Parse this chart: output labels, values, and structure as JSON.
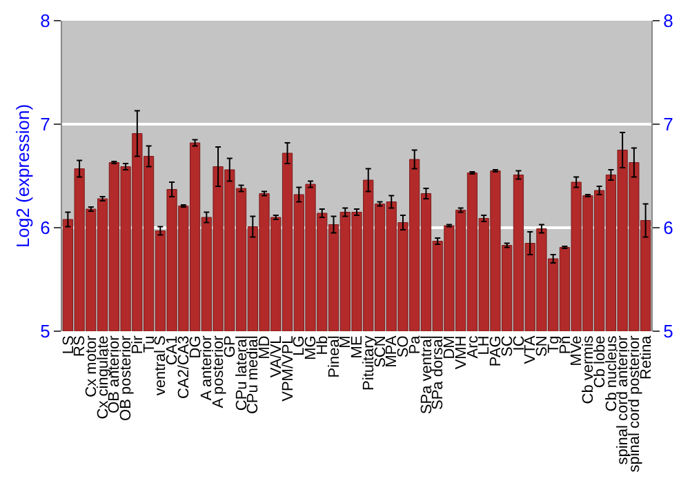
{
  "chart_data": {
    "type": "bar",
    "ylabel": "Log2 (expression)",
    "categories": [
      "LS",
      "RS",
      "Cx motor",
      "Cx cingulate",
      "OB anterior",
      "OB posterior",
      "Pir",
      "Tu",
      "ventral S",
      "CA1",
      "CA2/CA3",
      "DG",
      "A anterior",
      "A posterior",
      "GP",
      "CPu lateral",
      "CPu medial",
      "MD",
      "VA/VL",
      "VPM/VPL",
      "LG",
      "MG",
      "Hb",
      "Pineal",
      "M",
      "ME",
      "Pituitary",
      "SCN",
      "MPA",
      "SO",
      "Pa",
      "SPa ventral",
      "SPa dorsal",
      "DM",
      "VMH",
      "Arc",
      "LH",
      "PAG",
      "SC",
      "IC",
      "VTA",
      "SN",
      "Tg",
      "Pn",
      "MVe",
      "Cb vermis",
      "Cb lobe",
      "Cb nucleus",
      "spinal cord anterior",
      "spinal cord posterior",
      "Retina"
    ],
    "values": [
      6.08,
      6.57,
      6.18,
      6.28,
      6.63,
      6.59,
      6.91,
      6.69,
      5.97,
      6.37,
      6.21,
      6.82,
      6.1,
      6.59,
      6.56,
      6.38,
      6.01,
      6.33,
      6.1,
      6.72,
      6.32,
      6.42,
      6.14,
      6.03,
      6.15,
      6.15,
      6.46,
      6.23,
      6.25,
      6.05,
      6.66,
      6.33,
      5.87,
      6.02,
      6.17,
      6.53,
      6.09,
      6.55,
      5.83,
      6.51,
      5.85,
      5.99,
      5.7,
      5.81,
      6.44,
      6.31,
      6.36,
      6.51,
      6.75,
      6.63,
      6.07
    ],
    "errors": [
      0.07,
      0.08,
      0.02,
      0.02,
      0.01,
      0.03,
      0.22,
      0.1,
      0.04,
      0.07,
      0.01,
      0.03,
      0.05,
      0.19,
      0.11,
      0.03,
      0.1,
      0.02,
      0.02,
      0.1,
      0.07,
      0.03,
      0.04,
      0.08,
      0.04,
      0.03,
      0.11,
      0.02,
      0.06,
      0.07,
      0.09,
      0.05,
      0.03,
      0.01,
      0.02,
      0.01,
      0.03,
      0.01,
      0.02,
      0.04,
      0.11,
      0.04,
      0.04,
      0.01,
      0.05,
      0.01,
      0.04,
      0.05,
      0.17,
      0.14,
      0.16
    ],
    "color": "#b22a2a",
    "ylim": [
      5,
      8
    ],
    "yticks": [
      5,
      6,
      7,
      8
    ],
    "y2lim": [
      5,
      8
    ],
    "y2ticks": [
      5,
      6,
      7,
      8
    ],
    "grid": "y"
  }
}
